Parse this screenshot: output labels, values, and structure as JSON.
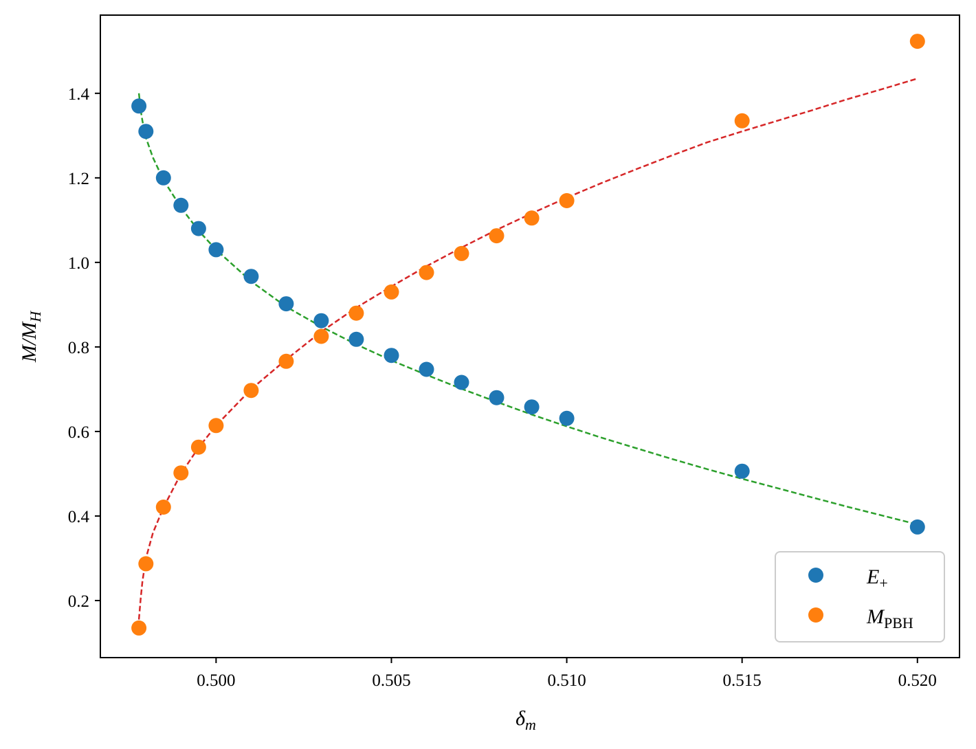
{
  "chart_data": {
    "type": "scatter",
    "title": "",
    "xlabel": {
      "base": "δ",
      "sub": "m"
    },
    "ylabel": "M/M",
    "ylabel_sub": "H",
    "xlim": [
      0.4967,
      0.5212
    ],
    "ylim": [
      0.065,
      1.585
    ],
    "xticks": [
      0.5,
      0.505,
      0.51,
      0.515,
      0.52
    ],
    "xtick_labels": [
      "0.500",
      "0.505",
      "0.510",
      "0.515",
      "0.520"
    ],
    "yticks": [
      0.2,
      0.4,
      0.6,
      0.8,
      1.0,
      1.2,
      1.4
    ],
    "ytick_labels": [
      "0.2",
      "0.4",
      "0.6",
      "0.8",
      "1.0",
      "1.2",
      "1.4"
    ],
    "grid": false,
    "legend_position": "lower-right",
    "series": [
      {
        "name": "E+",
        "legend_base": "E",
        "legend_sub": "+",
        "color": "#1f77b4",
        "marker": "circle",
        "x": [
          0.4978,
          0.498,
          0.4985,
          0.499,
          0.4995,
          0.5,
          0.501,
          0.502,
          0.503,
          0.504,
          0.505,
          0.506,
          0.507,
          0.508,
          0.509,
          0.51,
          0.515,
          0.52
        ],
        "y": [
          1.37,
          1.31,
          1.2,
          1.135,
          1.08,
          1.03,
          0.967,
          0.902,
          0.862,
          0.818,
          0.78,
          0.747,
          0.716,
          0.68,
          0.658,
          0.631,
          0.506,
          0.374
        ]
      },
      {
        "name": "MPBH",
        "legend_base": "M",
        "legend_sub": "PBH",
        "color": "#ff7f0e",
        "marker": "circle",
        "x": [
          0.4978,
          0.498,
          0.4985,
          0.499,
          0.4995,
          0.5,
          0.501,
          0.502,
          0.503,
          0.504,
          0.505,
          0.506,
          0.507,
          0.508,
          0.509,
          0.51,
          0.515,
          0.52
        ],
        "y": [
          0.135,
          0.287,
          0.421,
          0.502,
          0.563,
          0.614,
          0.697,
          0.766,
          0.825,
          0.88,
          0.93,
          0.976,
          1.021,
          1.063,
          1.105,
          1.146,
          1.335,
          1.523
        ]
      }
    ],
    "fits": [
      {
        "of": "E+",
        "color": "#2ca02c",
        "style": "dashed",
        "x": [
          0.4978,
          0.49785,
          0.4979,
          0.498,
          0.4982,
          0.4985,
          0.499,
          0.4995,
          0.5,
          0.501,
          0.502,
          0.503,
          0.504,
          0.505,
          0.506,
          0.507,
          0.508,
          0.509,
          0.51,
          0.511,
          0.512,
          0.513,
          0.514,
          0.515,
          0.516,
          0.517,
          0.518,
          0.519,
          0.52
        ],
        "y": [
          1.4,
          1.36,
          1.335,
          1.295,
          1.248,
          1.195,
          1.13,
          1.075,
          1.03,
          0.955,
          0.895,
          0.848,
          0.806,
          0.768,
          0.734,
          0.701,
          0.67,
          0.64,
          0.612,
          0.585,
          0.56,
          0.535,
          0.511,
          0.488,
          0.466,
          0.444,
          0.422,
          0.401,
          0.38
        ]
      },
      {
        "of": "MPBH",
        "color": "#d62728",
        "style": "dashed",
        "x": [
          0.4978,
          0.49785,
          0.4979,
          0.498,
          0.4982,
          0.4985,
          0.499,
          0.4995,
          0.5,
          0.501,
          0.502,
          0.503,
          0.504,
          0.505,
          0.506,
          0.507,
          0.508,
          0.509,
          0.51,
          0.511,
          0.512,
          0.513,
          0.514,
          0.515,
          0.516,
          0.517,
          0.518,
          0.519,
          0.52
        ],
        "y": [
          0.155,
          0.205,
          0.245,
          0.3,
          0.36,
          0.42,
          0.5,
          0.562,
          0.614,
          0.7,
          0.77,
          0.836,
          0.893,
          0.943,
          0.991,
          1.035,
          1.077,
          1.116,
          1.153,
          1.188,
          1.221,
          1.253,
          1.284,
          1.31,
          1.335,
          1.36,
          1.386,
          1.41,
          1.435
        ]
      }
    ]
  }
}
